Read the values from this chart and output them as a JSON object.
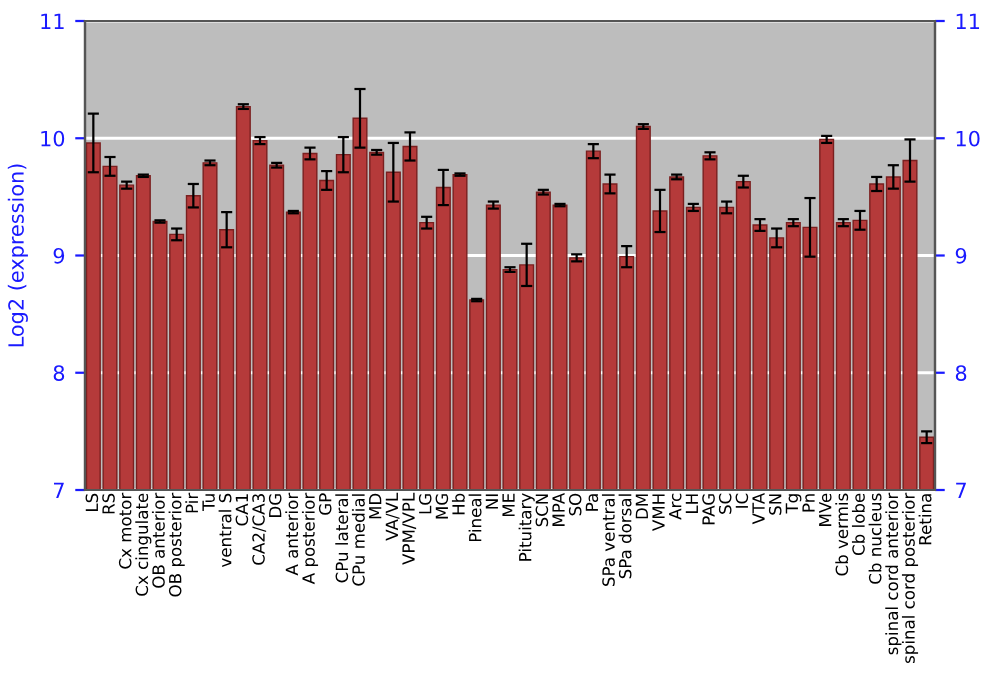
{
  "chart_data": {
    "type": "bar",
    "ylabel": "Log2 (expression)",
    "categories": [
      "LS",
      "RS",
      "Cx motor",
      "Cx cingulate",
      "OB anterior",
      "OB posterior",
      "Pir",
      "Tu",
      "ventral S",
      "CA1",
      "CA2/CA3",
      "DG",
      "A anterior",
      "A posterior",
      "GP",
      "CPu lateral",
      "CPu medial",
      "MD",
      "VA/VL",
      "VPM/VPL",
      "LG",
      "MG",
      "Hb",
      "Pineal",
      "NI",
      "ME",
      "Pituitary",
      "SCN",
      "MPA",
      "SO",
      "Pa",
      "SPa ventral",
      "SPa dorsal",
      "DM",
      "VMH",
      "Arc",
      "LH",
      "PAG",
      "SC",
      "IC",
      "VTA",
      "SN",
      "Tg",
      "Pn",
      "MVe",
      "Cb vermis",
      "Cb lobe",
      "Cb nucleus",
      "spinal cord anterior",
      "spinal cord posterior",
      "Retina"
    ],
    "values": [
      9.96,
      9.76,
      9.6,
      9.68,
      9.29,
      9.18,
      9.51,
      9.79,
      9.22,
      10.27,
      9.98,
      9.77,
      9.37,
      9.87,
      9.64,
      9.86,
      10.17,
      9.88,
      9.71,
      9.93,
      9.28,
      9.58,
      9.69,
      8.62,
      9.43,
      8.88,
      8.92,
      9.54,
      9.43,
      8.98,
      9.89,
      9.61,
      8.99,
      10.1,
      9.38,
      9.67,
      9.41,
      9.85,
      9.41,
      9.63,
      9.26,
      9.15,
      9.28,
      9.24,
      9.99,
      9.28,
      9.3,
      9.61,
      9.67,
      9.81,
      7.45
    ],
    "errors": [
      0.25,
      0.08,
      0.03,
      0.01,
      0.01,
      0.05,
      0.1,
      0.02,
      0.15,
      0.02,
      0.03,
      0.02,
      0.01,
      0.05,
      0.08,
      0.15,
      0.25,
      0.02,
      0.25,
      0.12,
      0.05,
      0.15,
      0.01,
      0.01,
      0.03,
      0.02,
      0.18,
      0.02,
      0.01,
      0.03,
      0.06,
      0.08,
      0.09,
      0.02,
      0.18,
      0.02,
      0.03,
      0.03,
      0.05,
      0.05,
      0.05,
      0.08,
      0.03,
      0.25,
      0.03,
      0.03,
      0.08,
      0.06,
      0.1,
      0.18,
      0.05
    ],
    "color": "#b53a3a",
    "ylim": [
      7,
      11
    ],
    "yticks": [
      7,
      8,
      9,
      10,
      11
    ],
    "y2lim": [
      7,
      11
    ],
    "y2ticks": [
      7,
      8,
      9,
      10,
      11
    ],
    "grid": "y"
  }
}
